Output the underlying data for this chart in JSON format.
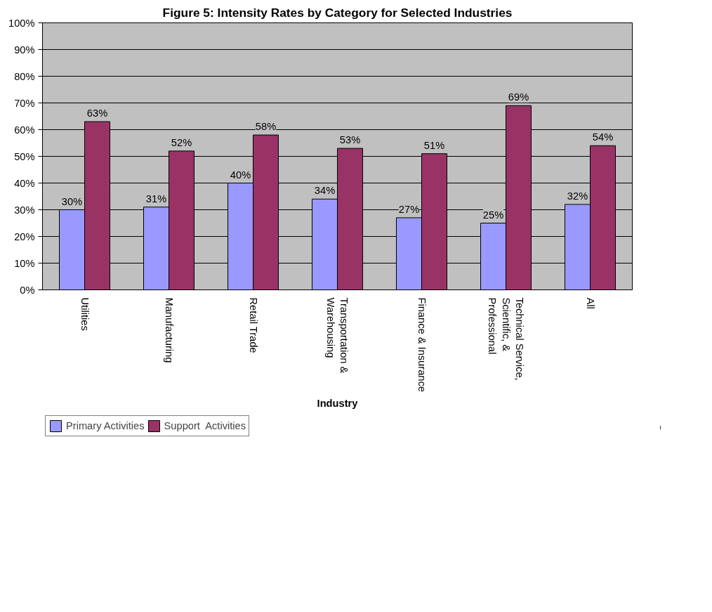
{
  "chart_data": {
    "type": "bar",
    "title": "Figure 5: Intensity Rates by Category for Selected Industries",
    "xlabel": "Industry",
    "categories": [
      "Utilities",
      "Manufacturing",
      "Retail Trade",
      "Transportation & Warehousing",
      "Finance & Insurance",
      "Technical Service, Scientific, & Professional",
      "All"
    ],
    "series": [
      {
        "name": "Primary Activities",
        "color": "#9999ff",
        "values": [
          30,
          31,
          40,
          34,
          27,
          25,
          32
        ],
        "value_labels": [
          "30%",
          "31%",
          "40%",
          "34%",
          "27%",
          "25%",
          "32%"
        ]
      },
      {
        "name": "Support  Activities",
        "color": "#993366",
        "values": [
          63,
          52,
          58,
          53,
          51,
          69,
          54
        ],
        "value_labels": [
          "63%",
          "52%",
          "58%",
          "53%",
          "51%",
          "69%",
          "54%"
        ]
      }
    ],
    "ylim": [
      0,
      100
    ],
    "yticks": [
      {
        "value": 0,
        "label": "0%"
      },
      {
        "value": 10,
        "label": "10%"
      },
      {
        "value": 20,
        "label": "20%"
      },
      {
        "value": 30,
        "label": "30%"
      },
      {
        "value": 40,
        "label": "40%"
      },
      {
        "value": 50,
        "label": "50%"
      },
      {
        "value": 60,
        "label": "60%"
      },
      {
        "value": 70,
        "label": "70%"
      },
      {
        "value": 80,
        "label": "80%"
      },
      {
        "value": 90,
        "label": "90%"
      },
      {
        "value": 100,
        "label": "100%"
      }
    ],
    "grid": "y",
    "legend": "bottom left"
  }
}
